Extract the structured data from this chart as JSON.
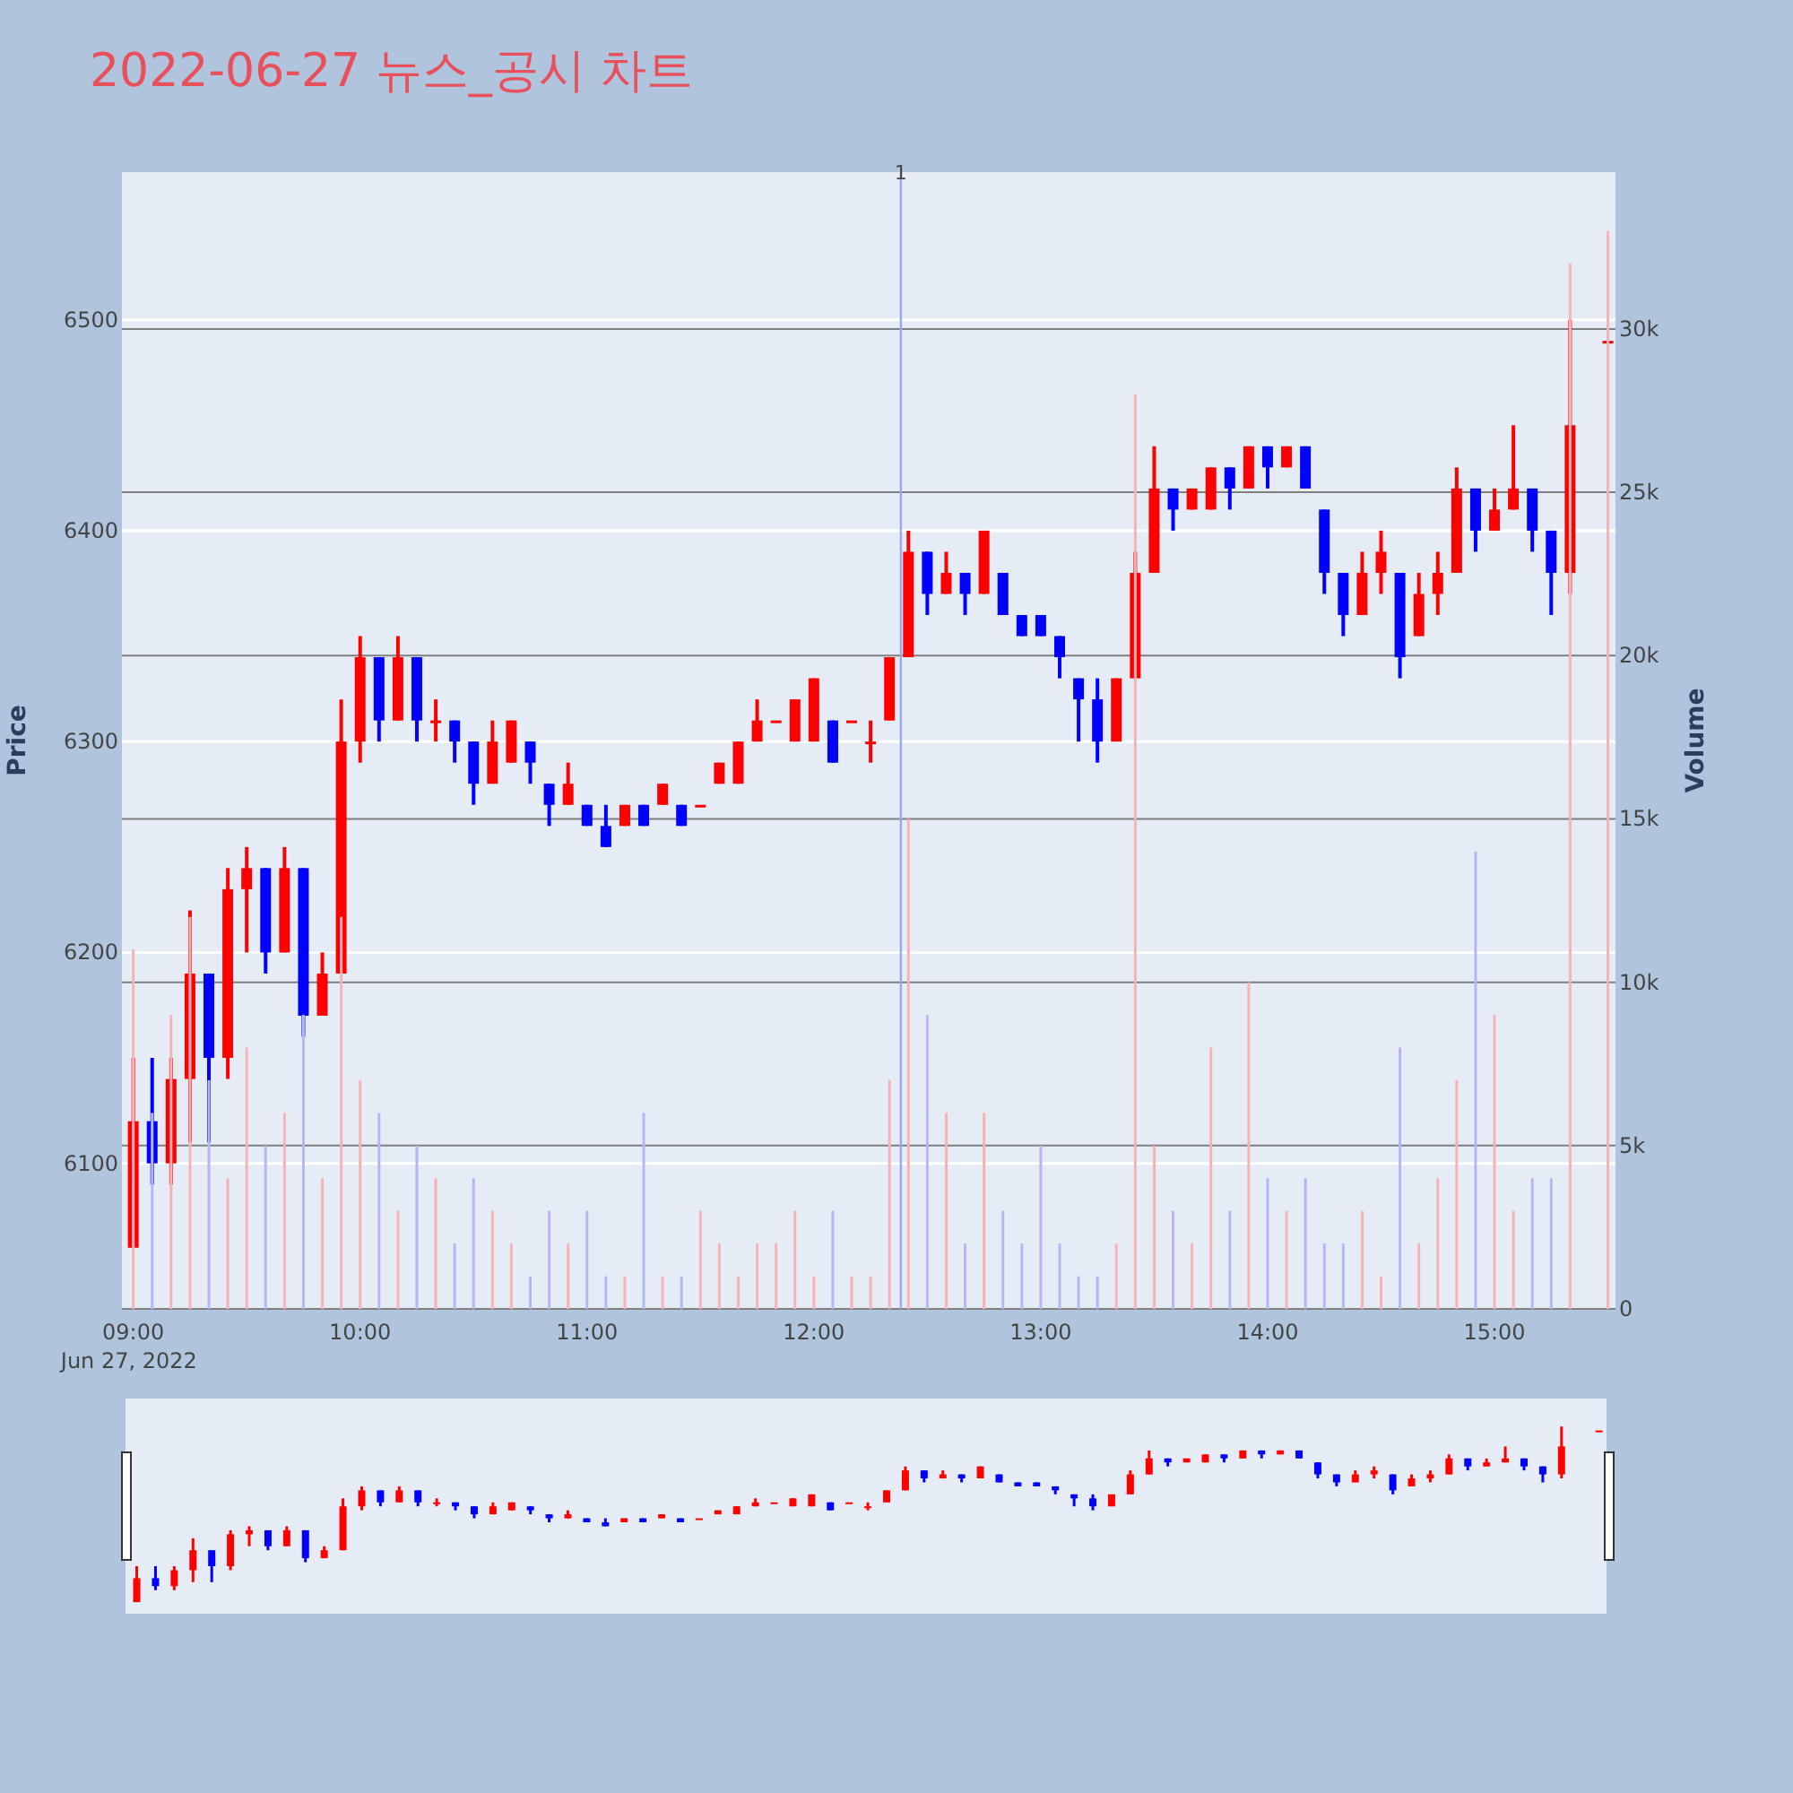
{
  "chart_data": {
    "type": "candlestick",
    "title": "2022-06-27 뉴스_공시 차트",
    "ylabel": "Price",
    "y2label": "Volume",
    "x": [
      "2022-06-27T09:00",
      "2022-06-27T09:05",
      "2022-06-27T09:10",
      "2022-06-27T09:15",
      "2022-06-27T09:20",
      "2022-06-27T09:25",
      "2022-06-27T09:30",
      "2022-06-27T09:35",
      "2022-06-27T09:40",
      "2022-06-27T09:45",
      "2022-06-27T09:50",
      "2022-06-27T09:55",
      "2022-06-27T10:00",
      "2022-06-27T10:05",
      "2022-06-27T10:10",
      "2022-06-27T10:15",
      "2022-06-27T10:20",
      "2022-06-27T10:25",
      "2022-06-27T10:30",
      "2022-06-27T10:35",
      "2022-06-27T10:40",
      "2022-06-27T10:45",
      "2022-06-27T10:50",
      "2022-06-27T10:55",
      "2022-06-27T11:00",
      "2022-06-27T11:05",
      "2022-06-27T11:10",
      "2022-06-27T11:15",
      "2022-06-27T11:20",
      "2022-06-27T11:25",
      "2022-06-27T11:30",
      "2022-06-27T11:35",
      "2022-06-27T11:40",
      "2022-06-27T11:45",
      "2022-06-27T11:50",
      "2022-06-27T11:55",
      "2022-06-27T12:00",
      "2022-06-27T12:05",
      "2022-06-27T12:10",
      "2022-06-27T12:15",
      "2022-06-27T12:20",
      "2022-06-27T12:25",
      "2022-06-27T12:30",
      "2022-06-27T12:35",
      "2022-06-27T12:40",
      "2022-06-27T12:45",
      "2022-06-27T12:50",
      "2022-06-27T12:55",
      "2022-06-27T13:00",
      "2022-06-27T13:05",
      "2022-06-27T13:10",
      "2022-06-27T13:15",
      "2022-06-27T13:20",
      "2022-06-27T13:25",
      "2022-06-27T13:30",
      "2022-06-27T13:35",
      "2022-06-27T13:40",
      "2022-06-27T13:45",
      "2022-06-27T13:50",
      "2022-06-27T13:55",
      "2022-06-27T14:00",
      "2022-06-27T14:05",
      "2022-06-27T14:10",
      "2022-06-27T14:15",
      "2022-06-27T14:20",
      "2022-06-27T14:25",
      "2022-06-27T14:30",
      "2022-06-27T14:35",
      "2022-06-27T14:40",
      "2022-06-27T14:45",
      "2022-06-27T14:50",
      "2022-06-27T14:55",
      "2022-06-27T15:00",
      "2022-06-27T15:05",
      "2022-06-27T15:10",
      "2022-06-27T15:15",
      "2022-06-27T15:20",
      "2022-06-27T15:30"
    ],
    "ohlc": [
      [
        6060,
        6150,
        6060,
        6120
      ],
      [
        6120,
        6150,
        6090,
        6100
      ],
      [
        6100,
        6150,
        6090,
        6140
      ],
      [
        6140,
        6220,
        6110,
        6190
      ],
      [
        6190,
        6190,
        6110,
        6150
      ],
      [
        6150,
        6240,
        6140,
        6230
      ],
      [
        6230,
        6250,
        6200,
        6240
      ],
      [
        6240,
        6240,
        6190,
        6200
      ],
      [
        6200,
        6250,
        6200,
        6240
      ],
      [
        6240,
        6240,
        6160,
        6170
      ],
      [
        6170,
        6200,
        6170,
        6190
      ],
      [
        6190,
        6320,
        6190,
        6300
      ],
      [
        6300,
        6350,
        6290,
        6340
      ],
      [
        6340,
        6340,
        6300,
        6310
      ],
      [
        6310,
        6350,
        6310,
        6340
      ],
      [
        6340,
        6340,
        6300,
        6310
      ],
      [
        6310,
        6320,
        6300,
        6310
      ],
      [
        6310,
        6310,
        6290,
        6300
      ],
      [
        6300,
        6300,
        6270,
        6280
      ],
      [
        6280,
        6310,
        6280,
        6300
      ],
      [
        6290,
        6310,
        6290,
        6310
      ],
      [
        6300,
        6300,
        6280,
        6290
      ],
      [
        6280,
        6280,
        6260,
        6270
      ],
      [
        6270,
        6290,
        6270,
        6280
      ],
      [
        6270,
        6270,
        6260,
        6260
      ],
      [
        6260,
        6270,
        6250,
        6250
      ],
      [
        6260,
        6270,
        6260,
        6270
      ],
      [
        6270,
        6270,
        6260,
        6260
      ],
      [
        6270,
        6280,
        6270,
        6280
      ],
      [
        6270,
        6270,
        6260,
        6260
      ],
      [
        6270,
        6270,
        6270,
        6270
      ],
      [
        6280,
        6290,
        6280,
        6290
      ],
      [
        6280,
        6300,
        6280,
        6300
      ],
      [
        6300,
        6320,
        6300,
        6310
      ],
      [
        6310,
        6310,
        6310,
        6310
      ],
      [
        6300,
        6320,
        6300,
        6320
      ],
      [
        6300,
        6330,
        6300,
        6330
      ],
      [
        6310,
        6310,
        6290,
        6290
      ],
      [
        6310,
        6310,
        6310,
        6310
      ],
      [
        6300,
        6310,
        6290,
        6300
      ],
      [
        6310,
        6340,
        6310,
        6340
      ],
      [
        6340,
        6400,
        6340,
        6390
      ],
      [
        6390,
        6390,
        6360,
        6370
      ],
      [
        6370,
        6390,
        6370,
        6380
      ],
      [
        6380,
        6380,
        6360,
        6370
      ],
      [
        6370,
        6400,
        6370,
        6400
      ],
      [
        6380,
        6380,
        6360,
        6360
      ],
      [
        6360,
        6360,
        6350,
        6350
      ],
      [
        6360,
        6360,
        6350,
        6350
      ],
      [
        6350,
        6350,
        6330,
        6340
      ],
      [
        6330,
        6330,
        6300,
        6320
      ],
      [
        6320,
        6330,
        6290,
        6300
      ],
      [
        6300,
        6330,
        6300,
        6330
      ],
      [
        6330,
        6390,
        6330,
        6380
      ],
      [
        6380,
        6440,
        6380,
        6420
      ],
      [
        6420,
        6420,
        6400,
        6410
      ],
      [
        6410,
        6420,
        6410,
        6420
      ],
      [
        6410,
        6430,
        6410,
        6430
      ],
      [
        6430,
        6430,
        6410,
        6420
      ],
      [
        6420,
        6440,
        6420,
        6440
      ],
      [
        6440,
        6440,
        6420,
        6430
      ],
      [
        6430,
        6440,
        6430,
        6440
      ],
      [
        6440,
        6440,
        6420,
        6420
      ],
      [
        6410,
        6410,
        6370,
        6380
      ],
      [
        6380,
        6380,
        6350,
        6360
      ],
      [
        6360,
        6390,
        6360,
        6380
      ],
      [
        6380,
        6400,
        6370,
        6390
      ],
      [
        6380,
        6380,
        6330,
        6340
      ],
      [
        6350,
        6380,
        6350,
        6370
      ],
      [
        6370,
        6390,
        6360,
        6380
      ],
      [
        6380,
        6430,
        6380,
        6420
      ],
      [
        6420,
        6420,
        6390,
        6400
      ],
      [
        6400,
        6420,
        6400,
        6410
      ],
      [
        6410,
        6450,
        6410,
        6420
      ],
      [
        6420,
        6420,
        6390,
        6400
      ],
      [
        6400,
        6400,
        6360,
        6380
      ],
      [
        6380,
        6500,
        6370,
        6450
      ],
      [
        6490,
        6490,
        6490,
        6490
      ]
    ],
    "colors": [
      "#ff0000",
      "#0000ff",
      "#ff0000",
      "#ff0000",
      "#0000ff",
      "#ff0000",
      "#ff0000",
      "#0000ff",
      "#ff0000",
      "#0000ff",
      "#ff0000",
      "#ff0000",
      "#ff0000",
      "#0000ff",
      "#ff0000",
      "#0000ff",
      "#ff0000",
      "#0000ff",
      "#0000ff",
      "#ff0000",
      "#ff0000",
      "#0000ff",
      "#0000ff",
      "#ff0000",
      "#0000ff",
      "#0000ff",
      "#ff0000",
      "#0000ff",
      "#ff0000",
      "#0000ff",
      "#ff0000",
      "#ff0000",
      "#ff0000",
      "#ff0000",
      "#ff0000",
      "#ff0000",
      "#ff0000",
      "#0000ff",
      "#ff0000",
      "#ff0000",
      "#ff0000",
      "#ff0000",
      "#0000ff",
      "#ff0000",
      "#0000ff",
      "#ff0000",
      "#0000ff",
      "#0000ff",
      "#0000ff",
      "#0000ff",
      "#0000ff",
      "#0000ff",
      "#ff0000",
      "#ff0000",
      "#ff0000",
      "#0000ff",
      "#ff0000",
      "#ff0000",
      "#0000ff",
      "#ff0000",
      "#0000ff",
      "#ff0000",
      "#0000ff",
      "#0000ff",
      "#0000ff",
      "#ff0000",
      "#ff0000",
      "#0000ff",
      "#ff0000",
      "#ff0000",
      "#ff0000",
      "#0000ff",
      "#ff0000",
      "#ff0000",
      "#0000ff",
      "#0000ff",
      "#ff0000",
      "#ff0000"
    ],
    "series": [
      {
        "type": "bar",
        "axis": "y2",
        "colors": [
          "#f5b3b8",
          "#b3b8f5",
          "#f5b3b8",
          "#f5b3b8",
          "#b3b8f5",
          "#f5b3b8",
          "#f5b3b8",
          "#b3b8f5",
          "#f5b3b8",
          "#b3b8f5",
          "#f5b3b8",
          "#f5b3b8",
          "#f5b3b8",
          "#b3b8f5",
          "#f5b3b8",
          "#b3b8f5",
          "#f5b3b8",
          "#b3b8f5",
          "#b3b8f5",
          "#f5b3b8",
          "#f5b3b8",
          "#b3b8f5",
          "#b3b8f5",
          "#f5b3b8",
          "#b3b8f5",
          "#b3b8f5",
          "#f5b3b8",
          "#b3b8f5",
          "#f5b3b8",
          "#b3b8f5",
          "#f5b3b8",
          "#f5b3b8",
          "#f5b3b8",
          "#f5b3b8",
          "#f5b3b8",
          "#f5b3b8",
          "#f5b3b8",
          "#b3b8f5",
          "#f5b3b8",
          "#f5b3b8",
          "#f5b3b8",
          "#f5b3b8",
          "#b3b8f5",
          "#f5b3b8",
          "#b3b8f5",
          "#f5b3b8",
          "#b3b8f5",
          "#b3b8f5",
          "#b3b8f5",
          "#b3b8f5",
          "#b3b8f5",
          "#b3b8f5",
          "#f5b3b8",
          "#f5b3b8",
          "#f5b3b8",
          "#b3b8f5",
          "#f5b3b8",
          "#f5b3b8",
          "#b3b8f5",
          "#f5b3b8",
          "#b3b8f5",
          "#f5b3b8",
          "#b3b8f5",
          "#b3b8f5",
          "#b3b8f5",
          "#f5b3b8",
          "#f5b3b8",
          "#b3b8f5",
          "#f5b3b8",
          "#f5b3b8",
          "#f5b3b8",
          "#b3b8f5",
          "#f5b3b8",
          "#f5b3b8",
          "#b3b8f5",
          "#b3b8f5",
          "#f5b3b8",
          "#f5b3b8"
        ],
        "values": [
          11000,
          6000,
          9000,
          12000,
          7000,
          4000,
          8000,
          5000,
          6000,
          9000,
          4000,
          12000,
          7000,
          6000,
          3000,
          5000,
          4000,
          2000,
          4000,
          3000,
          2000,
          1000,
          3000,
          2000,
          3000,
          1000,
          1000,
          6000,
          1000,
          1000,
          3000,
          2000,
          1000,
          2000,
          2000,
          3000,
          1000,
          3000,
          1000,
          1000,
          7000,
          15000,
          9000,
          6000,
          2000,
          6000,
          3000,
          2000,
          5000,
          2000,
          1000,
          1000,
          2000,
          28000,
          5000,
          3000,
          2000,
          8000,
          3000,
          10000,
          4000,
          3000,
          4000,
          2000,
          2000,
          3000,
          1000,
          8000,
          2000,
          4000,
          7000,
          14000,
          9000,
          3000,
          4000,
          4000,
          32000,
          33000
        ]
      }
    ],
    "xlim": [
      "2022-06-27T08:57",
      "2022-06-27T15:32"
    ],
    "xticks": [
      {
        "value": "2022-06-27T09:00",
        "label": "09:00\nJun 27, 2022"
      },
      {
        "value": "2022-06-27T10:00",
        "label": "10:00"
      },
      {
        "value": "2022-06-27T11:00",
        "label": "11:00"
      },
      {
        "value": "2022-06-27T12:00",
        "label": "12:00"
      },
      {
        "value": "2022-06-27T13:00",
        "label": "13:00"
      },
      {
        "value": "2022-06-27T14:00",
        "label": "14:00"
      },
      {
        "value": "2022-06-27T15:00",
        "label": "15:00"
      }
    ],
    "ylim": [
      6031,
      6570
    ],
    "yticks": [
      6100,
      6200,
      6300,
      6400,
      6500
    ],
    "y2lim": [
      0,
      34800
    ],
    "y2ticks": [
      0,
      {
        "value": 5000,
        "label": "5k"
      },
      {
        "value": 10000,
        "label": "10k"
      },
      {
        "value": 15000,
        "label": "15k"
      },
      {
        "value": 20000,
        "label": "20k"
      },
      {
        "value": 25000,
        "label": "25k"
      },
      {
        "value": 30000,
        "label": "30k"
      }
    ],
    "ref_lines": [
      {
        "axis": "x",
        "value": "2022-06-27T12:23",
        "label": "1",
        "color": "#9aa8f0"
      }
    ],
    "grid": true
  }
}
